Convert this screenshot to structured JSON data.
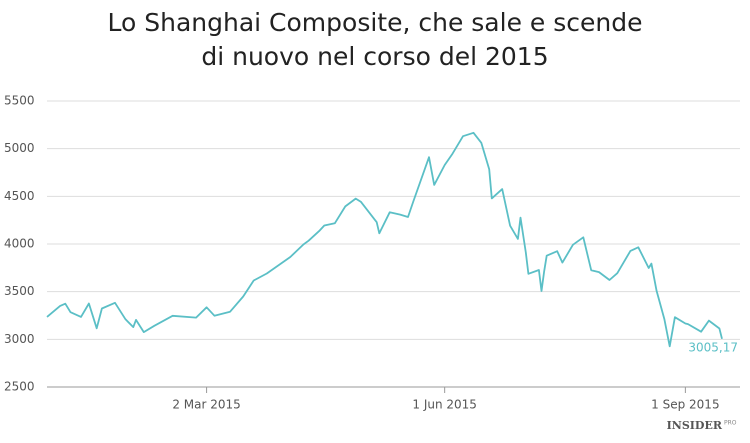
{
  "chart_data": {
    "type": "line",
    "title": [
      "Lo Shanghai Composite, che sale e scende",
      "di nuovo nel corso del 2015"
    ],
    "x": [
      "2014-12-31",
      "2015-01-05",
      "2015-01-07",
      "2015-01-09",
      "2015-01-13",
      "2015-01-16",
      "2015-01-19",
      "2015-01-21",
      "2015-01-26",
      "2015-01-30",
      "2015-02-02",
      "2015-02-03",
      "2015-02-06",
      "2015-02-10",
      "2015-02-17",
      "2015-02-26",
      "2015-03-02",
      "2015-03-05",
      "2015-03-11",
      "2015-03-16",
      "2015-03-20",
      "2015-03-25",
      "2015-03-30",
      "2015-04-03",
      "2015-04-08",
      "2015-04-10",
      "2015-04-14",
      "2015-04-16",
      "2015-04-20",
      "2015-04-24",
      "2015-04-28",
      "2015-04-30",
      "2015-05-06",
      "2015-05-07",
      "2015-05-11",
      "2015-05-15",
      "2015-05-18",
      "2015-05-20",
      "2015-05-26",
      "2015-05-28",
      "2015-06-01",
      "2015-06-04",
      "2015-06-08",
      "2015-06-12",
      "2015-06-15",
      "2015-06-18",
      "2015-06-19",
      "2015-06-23",
      "2015-06-26",
      "2015-06-29",
      "2015-06-30",
      "2015-07-02",
      "2015-07-03",
      "2015-07-07",
      "2015-07-08",
      "2015-07-09",
      "2015-07-10",
      "2015-07-14",
      "2015-07-16",
      "2015-07-20",
      "2015-07-24",
      "2015-07-27",
      "2015-07-30",
      "2015-08-03",
      "2015-08-06",
      "2015-08-11",
      "2015-08-14",
      "2015-08-18",
      "2015-08-19",
      "2015-08-21",
      "2015-08-24",
      "2015-08-26",
      "2015-08-28",
      "2015-09-01",
      "2015-09-02",
      "2015-09-07",
      "2015-09-10",
      "2015-09-14",
      "2015-09-15"
    ],
    "series": [
      {
        "color": "#5bbfc6",
        "values": [
          3235,
          3351,
          3374,
          3285,
          3235,
          3376,
          3116,
          3323,
          3383,
          3210,
          3128,
          3204,
          3076,
          3142,
          3247,
          3228,
          3336,
          3248,
          3290,
          3449,
          3617,
          3691,
          3786,
          3864,
          3995,
          4035,
          4135,
          4194,
          4217,
          4394,
          4476,
          4442,
          4229,
          4112,
          4333,
          4308,
          4283,
          4446,
          4910,
          4620,
          4829,
          4947,
          5131,
          5166,
          5062,
          4785,
          4478,
          4576,
          4192,
          4053,
          4277,
          3912,
          3687,
          3727,
          3507,
          3709,
          3877,
          3924,
          3805,
          3992,
          4070,
          3725,
          3705,
          3622,
          3694,
          3928,
          3965,
          3748,
          3794,
          3508,
          3210,
          2927,
          3232,
          3166,
          3160,
          3080,
          3197,
          3114,
          3005.17
        ],
        "value_labels": [
          null,
          null,
          null,
          null,
          null,
          null,
          null,
          null,
          null,
          null,
          null,
          null,
          null,
          null,
          null,
          null,
          null,
          null,
          null,
          null,
          null,
          null,
          null,
          null,
          null,
          null,
          null,
          null,
          null,
          null,
          null,
          null,
          null,
          null,
          null,
          null,
          null,
          null,
          null,
          null,
          null,
          null,
          null,
          null,
          null,
          null,
          null,
          null,
          null,
          null,
          null,
          null,
          null,
          null,
          null,
          null,
          null,
          null,
          null,
          null,
          null,
          null,
          null,
          null,
          null,
          null,
          null,
          null,
          null,
          null,
          null,
          null,
          null,
          null,
          null,
          null,
          null,
          null,
          "3005,17"
        ]
      }
    ],
    "xlim": [
      "2014-12-31",
      "2015-09-15"
    ],
    "xticks": [
      {
        "value": "2015-03-02",
        "label": "2 Mar 2015"
      },
      {
        "value": "2015-06-01",
        "label": "1 Jun 2015"
      },
      {
        "value": "2015-09-01",
        "label": "1 Sep 2015"
      }
    ],
    "ylim": [
      2500,
      5500
    ],
    "yticks": [
      2500,
      3000,
      3500,
      4000,
      4500,
      5000,
      5500
    ],
    "grid": true,
    "source_logo": [
      "INSIDER",
      "PRO"
    ]
  }
}
